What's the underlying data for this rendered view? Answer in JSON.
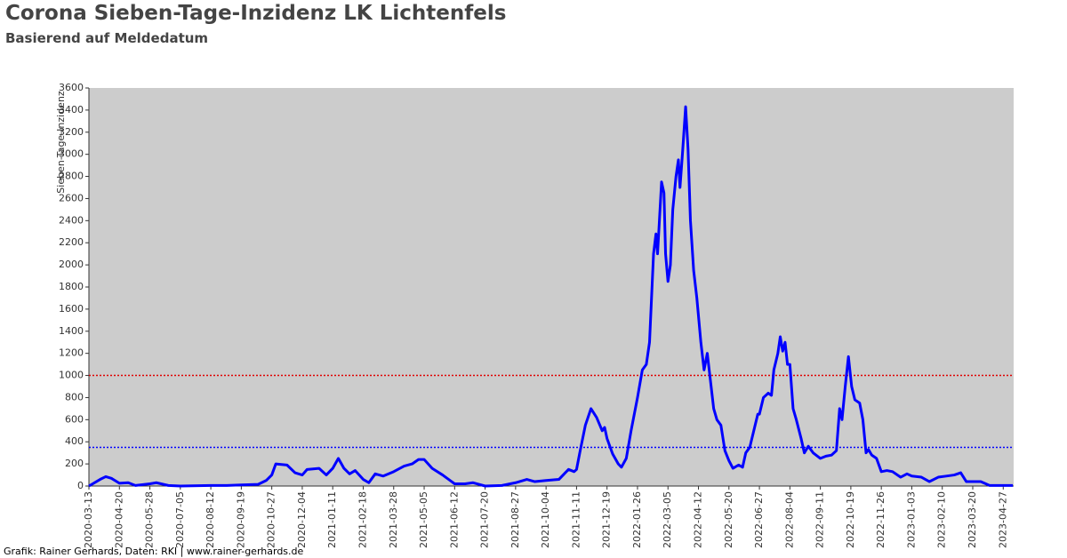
{
  "chart_data": {
    "type": "line",
    "title": "Corona Sieben-Tage-Inzidenz LK Lichtenfels",
    "subtitle": "Basierend auf Meldedatum",
    "y_label": "Sieben-Tage-Inzidenz",
    "footer": "Grafik: Rainer Gerhards, Daten: RKI | www.rainer-gerhards.de",
    "color": "#0000ff",
    "grid": false,
    "reference_lines": [
      {
        "value": 1000,
        "color": "#e00000"
      },
      {
        "value": 350,
        "color": "#0000ff"
      }
    ],
    "xlim": [
      "2020-03-13",
      "2023-05-10"
    ],
    "ylim": [
      0,
      3600
    ],
    "yticks": [
      0,
      200,
      400,
      600,
      800,
      1000,
      1200,
      1400,
      1600,
      1800,
      2000,
      2200,
      2400,
      2600,
      2800,
      3000,
      3200,
      3400,
      3600
    ],
    "xticks": [
      "2020-03-13",
      "2020-04-20",
      "2020-05-28",
      "2020-07-05",
      "2020-08-12",
      "2020-09-19",
      "2020-10-27",
      "2020-12-04",
      "2021-01-11",
      "2021-02-18",
      "2021-03-28",
      "2021-05-05",
      "2021-06-12",
      "2021-07-20",
      "2021-08-27",
      "2021-10-04",
      "2021-11-11",
      "2021-12-19",
      "2022-01-26",
      "2022-03-05",
      "2022-04-12",
      "2022-05-20",
      "2022-06-27",
      "2022-08-04",
      "2022-09-11",
      "2022-10-19",
      "2022-11-26",
      "2023-01-03",
      "2023-02-10",
      "2023-03-20",
      "2023-04-27"
    ],
    "x": [
      "2020-03-13",
      "2020-03-27",
      "2020-04-03",
      "2020-04-10",
      "2020-04-20",
      "2020-05-01",
      "2020-05-10",
      "2020-05-28",
      "2020-06-05",
      "2020-06-20",
      "2020-07-05",
      "2020-08-12",
      "2020-09-01",
      "2020-09-19",
      "2020-10-10",
      "2020-10-20",
      "2020-10-27",
      "2020-11-01",
      "2020-11-15",
      "2020-11-25",
      "2020-12-04",
      "2020-12-10",
      "2020-12-25",
      "2021-01-03",
      "2021-01-11",
      "2021-01-18",
      "2021-01-25",
      "2021-02-01",
      "2021-02-08",
      "2021-02-18",
      "2021-02-25",
      "2021-03-05",
      "2021-03-15",
      "2021-03-28",
      "2021-04-10",
      "2021-04-20",
      "2021-04-28",
      "2021-05-05",
      "2021-05-15",
      "2021-05-28",
      "2021-06-12",
      "2021-06-25",
      "2021-07-05",
      "2021-07-20",
      "2021-08-10",
      "2021-08-27",
      "2021-09-10",
      "2021-09-20",
      "2021-10-04",
      "2021-10-20",
      "2021-11-01",
      "2021-11-08",
      "2021-11-11",
      "2021-11-15",
      "2021-11-22",
      "2021-11-29",
      "2021-12-06",
      "2021-12-13",
      "2021-12-16",
      "2021-12-19",
      "2021-12-26",
      "2022-01-02",
      "2022-01-06",
      "2022-01-12",
      "2022-01-18",
      "2022-01-26",
      "2022-02-01",
      "2022-02-06",
      "2022-02-10",
      "2022-02-15",
      "2022-02-18",
      "2022-02-20",
      "2022-02-25",
      "2022-02-28",
      "2022-03-02",
      "2022-03-05",
      "2022-03-08",
      "2022-03-11",
      "2022-03-15",
      "2022-03-18",
      "2022-03-20",
      "2022-03-23",
      "2022-03-27",
      "2022-03-30",
      "2022-04-02",
      "2022-04-06",
      "2022-04-10",
      "2022-04-15",
      "2022-04-19",
      "2022-04-23",
      "2022-04-27",
      "2022-05-01",
      "2022-05-05",
      "2022-05-10",
      "2022-05-15",
      "2022-05-20",
      "2022-05-25",
      "2022-06-01",
      "2022-06-06",
      "2022-06-10",
      "2022-06-15",
      "2022-06-20",
      "2022-06-25",
      "2022-06-27",
      "2022-07-02",
      "2022-07-08",
      "2022-07-12",
      "2022-07-15",
      "2022-07-20",
      "2022-07-23",
      "2022-07-26",
      "2022-07-29",
      "2022-08-01",
      "2022-08-04",
      "2022-08-08",
      "2022-08-12",
      "2022-08-18",
      "2022-08-22",
      "2022-08-27",
      "2022-09-02",
      "2022-09-11",
      "2022-09-18",
      "2022-09-25",
      "2022-10-01",
      "2022-10-05",
      "2022-10-08",
      "2022-10-12",
      "2022-10-16",
      "2022-10-20",
      "2022-10-24",
      "2022-10-30",
      "2022-11-03",
      "2022-11-07",
      "2022-11-10",
      "2022-11-14",
      "2022-11-20",
      "2022-11-26",
      "2022-12-03",
      "2022-12-10",
      "2022-12-20",
      "2022-12-28",
      "2023-01-03",
      "2023-01-15",
      "2023-01-25",
      "2023-02-05",
      "2023-02-15",
      "2023-02-25",
      "2023-03-05",
      "2023-03-12",
      "2023-03-20",
      "2023-03-30",
      "2023-04-10",
      "2023-04-27",
      "2023-05-09"
    ],
    "values": [
      0,
      60,
      85,
      70,
      25,
      30,
      5,
      20,
      30,
      5,
      0,
      5,
      5,
      10,
      15,
      50,
      100,
      200,
      190,
      120,
      100,
      150,
      160,
      100,
      160,
      250,
      160,
      110,
      140,
      60,
      30,
      110,
      90,
      130,
      180,
      200,
      240,
      240,
      160,
      100,
      20,
      20,
      30,
      0,
      5,
      30,
      60,
      40,
      50,
      60,
      150,
      130,
      150,
      300,
      550,
      700,
      620,
      500,
      530,
      430,
      290,
      200,
      170,
      250,
      500,
      800,
      1050,
      1100,
      1300,
      2100,
      2280,
      2100,
      2750,
      2650,
      2100,
      1850,
      2000,
      2500,
      2800,
      2950,
      2700,
      3000,
      3430,
      3050,
      2400,
      1950,
      1700,
      1300,
      1050,
      1200,
      950,
      700,
      600,
      550,
      320,
      230,
      160,
      190,
      170,
      300,
      350,
      500,
      650,
      650,
      800,
      840,
      820,
      1050,
      1200,
      1350,
      1220,
      1300,
      1100,
      1100,
      700,
      600,
      430,
      300,
      360,
      300,
      250,
      270,
      280,
      320,
      700,
      600,
      900,
      1170,
      900,
      780,
      750,
      600,
      300,
      330,
      280,
      250,
      130,
      140,
      130,
      80,
      110,
      90,
      80,
      40,
      80,
      90,
      100,
      120,
      40,
      40,
      40,
      5,
      5,
      5
    ]
  }
}
